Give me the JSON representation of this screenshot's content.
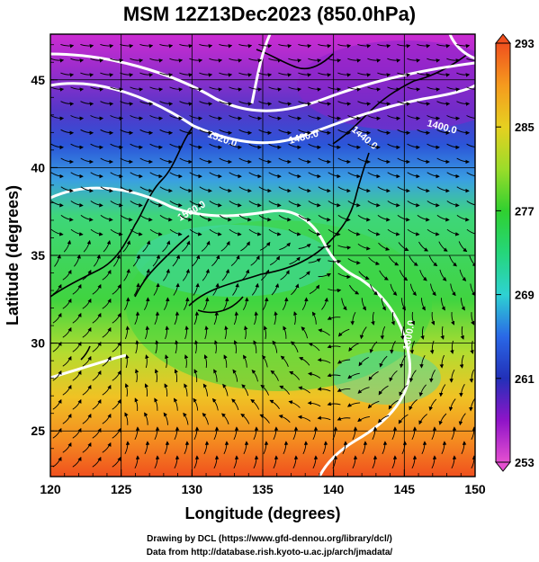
{
  "title": "MSM 12Z13Dec2023 (850.0hPa)",
  "x_axis": {
    "label": "Longitude (degrees)",
    "ticks": [
      120,
      125,
      130,
      135,
      140,
      145,
      150
    ]
  },
  "y_axis": {
    "label": "Latitude  (degrees)",
    "ticks": [
      25,
      30,
      35,
      40,
      45
    ]
  },
  "colorbar": {
    "ticks": [
      253,
      261,
      269,
      277,
      285,
      293
    ],
    "min": 253,
    "max": 293,
    "colors": [
      "#e44fd0",
      "#8f14c8",
      "#2230b8",
      "#2a68e6",
      "#2ed2d2",
      "#25d67a",
      "#30d030",
      "#9bdc2a",
      "#e6d020",
      "#f59a1e",
      "#f0501e"
    ]
  },
  "contour_labels": [
    "1520.0",
    "1480.0",
    "1440.0",
    "1400.0",
    "1560.0",
    "1600.0"
  ],
  "footer": {
    "line1": "Drawing by DCL (https://www.gfd-dennou.org/library/dcl/)",
    "line2": "Data from http://database.rish.kyoto-u.ac.jp/arch/jmadata/"
  },
  "map_colors": {
    "magenta": "#cc2cd2",
    "purple": "#7c27c6",
    "blue": "#2b4fd6",
    "lightblue": "#3a90e8",
    "cyan": "#3ed6c8",
    "green": "#38d64a",
    "yellowgreen": "#b4dc30",
    "yellow": "#f0c224",
    "orange": "#f47a20",
    "red": "#f0501e"
  }
}
